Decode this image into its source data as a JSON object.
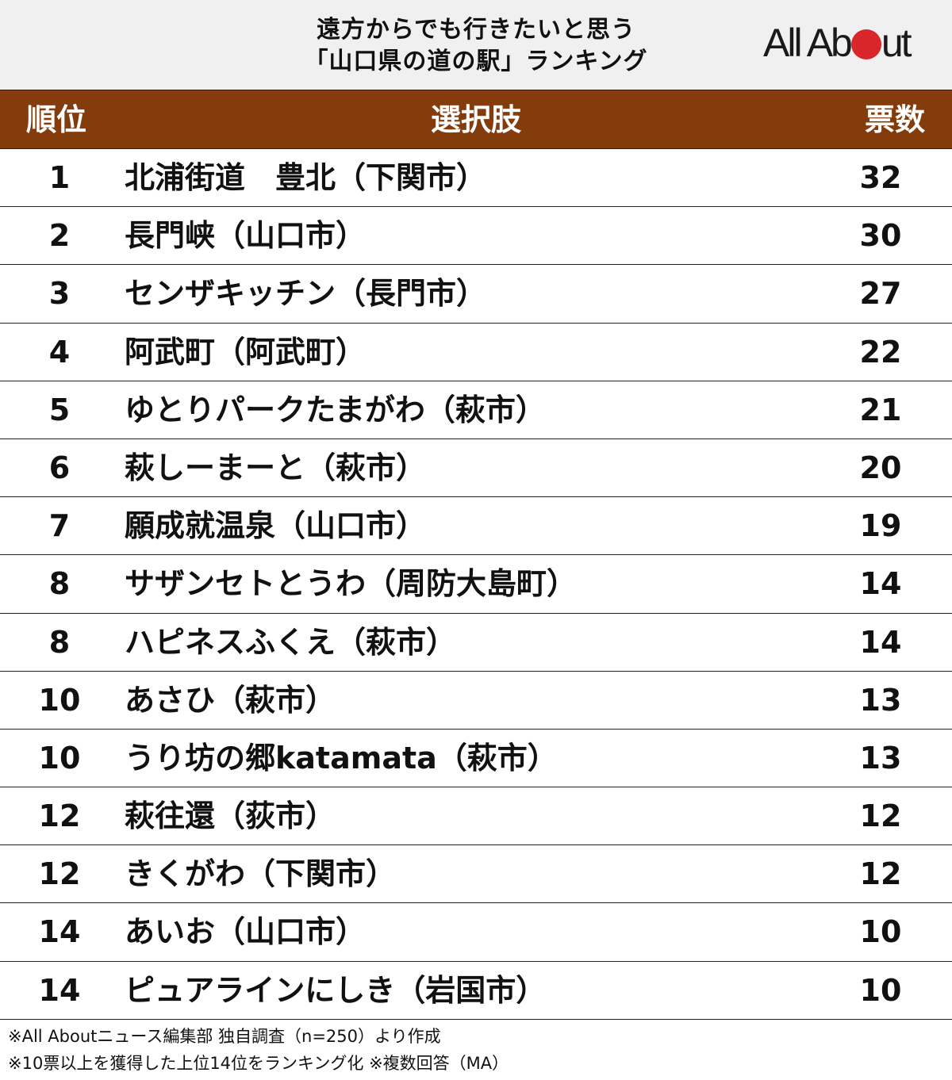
{
  "title": {
    "line1": "遠方からでも行きたいと思う",
    "line2": "「山口県の道の駅」ランキング"
  },
  "logo": {
    "text_left": "All Ab",
    "text_right": "ut",
    "dot_color": "#d9262a"
  },
  "colors": {
    "header_bg": "#843c0c",
    "title_bg": "#f0f0f0"
  },
  "table": {
    "headers": {
      "rank": "順位",
      "choice": "選択肢",
      "votes": "票数"
    },
    "rows": [
      {
        "rank": "1",
        "name": "北浦街道　豊北（下関市）",
        "votes": "32"
      },
      {
        "rank": "2",
        "name": "長門峡（山口市）",
        "votes": "30"
      },
      {
        "rank": "3",
        "name": "センザキッチン（長門市）",
        "votes": "27"
      },
      {
        "rank": "4",
        "name": "阿武町（阿武町）",
        "votes": "22"
      },
      {
        "rank": "5",
        "name": "ゆとりパークたまがわ（萩市）",
        "votes": "21"
      },
      {
        "rank": "6",
        "name": "萩しーまーと（萩市）",
        "votes": "20"
      },
      {
        "rank": "7",
        "name": "願成就温泉（山口市）",
        "votes": "19"
      },
      {
        "rank": "8",
        "name": "サザンセトとうわ（周防大島町）",
        "votes": "14"
      },
      {
        "rank": "8",
        "name": "ハピネスふくえ（萩市）",
        "votes": "14"
      },
      {
        "rank": "10",
        "name": "あさひ（萩市）",
        "votes": "13"
      },
      {
        "rank": "10",
        "name": "うり坊の郷katamata（萩市）",
        "votes": "13"
      },
      {
        "rank": "12",
        "name": "萩往還（荻市）",
        "votes": "12"
      },
      {
        "rank": "12",
        "name": "きくがわ（下関市）",
        "votes": "12"
      },
      {
        "rank": "14",
        "name": "あいお（山口市）",
        "votes": "10"
      },
      {
        "rank": "14",
        "name": "ピュアラインにしき（岩国市）",
        "votes": "10"
      }
    ]
  },
  "notes": [
    "※All Aboutニュース編集部 独自調査（n=250）より作成",
    "※10票以上を獲得した上位14位をランキング化 ※複数回答（MA）"
  ]
}
